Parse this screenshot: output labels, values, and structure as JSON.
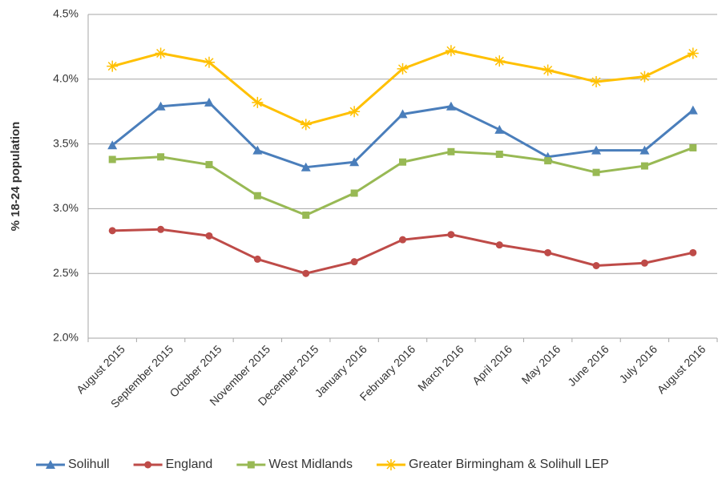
{
  "chart_data": {
    "type": "line",
    "y_label": "% 18-24 population",
    "categories": [
      "August 2015",
      "September 2015",
      "October 2015",
      "November 2015",
      "December 2015",
      "January 2016",
      "February 2016",
      "March 2016",
      "April 2016",
      "May 2016",
      "June 2016",
      "July 2016",
      "August 2016"
    ],
    "series": [
      {
        "name": "Solihull",
        "color": "#4a7ebb",
        "marker": "triangle",
        "values": [
          3.49,
          3.79,
          3.82,
          3.45,
          3.32,
          3.36,
          3.73,
          3.79,
          3.61,
          3.4,
          3.45,
          3.45,
          3.76
        ]
      },
      {
        "name": "England",
        "color": "#be4b48",
        "marker": "circle",
        "values": [
          2.83,
          2.84,
          2.79,
          2.61,
          2.5,
          2.59,
          2.76,
          2.8,
          2.72,
          2.66,
          2.56,
          2.58,
          2.66
        ]
      },
      {
        "name": "West Midlands",
        "color": "#98b954",
        "marker": "square",
        "values": [
          3.38,
          3.4,
          3.34,
          3.1,
          2.95,
          3.12,
          3.36,
          3.44,
          3.42,
          3.37,
          3.28,
          3.33,
          3.47
        ]
      },
      {
        "name": "Greater Birmingham & Solihull LEP",
        "color": "#ffc000",
        "marker": "star",
        "values": [
          4.1,
          4.2,
          4.13,
          3.82,
          3.65,
          3.75,
          4.08,
          4.22,
          4.14,
          4.07,
          3.98,
          4.02,
          4.2
        ]
      }
    ],
    "ylim": [
      2.0,
      4.5
    ],
    "yticks": [
      {
        "value": 2.0,
        "label": "2.0%"
      },
      {
        "value": 2.5,
        "label": "2.5%"
      },
      {
        "value": 3.0,
        "label": "3.0%"
      },
      {
        "value": 3.5,
        "label": "3.5%"
      },
      {
        "value": 4.0,
        "label": "4.0%"
      },
      {
        "value": 4.5,
        "label": "4.5%"
      }
    ],
    "grid": true,
    "legend": "bottom"
  }
}
